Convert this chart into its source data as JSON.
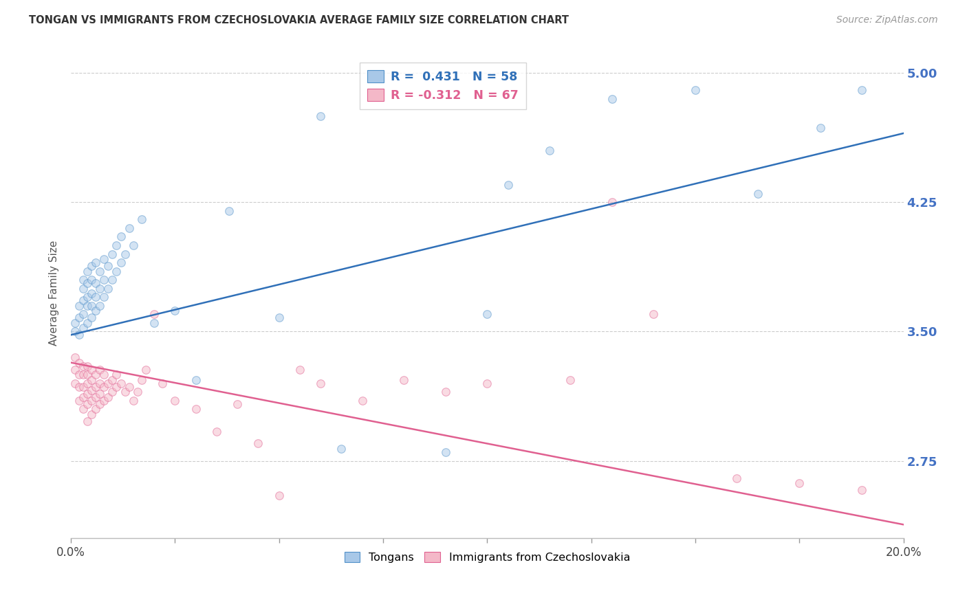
{
  "title": "TONGAN VS IMMIGRANTS FROM CZECHOSLOVAKIA AVERAGE FAMILY SIZE CORRELATION CHART",
  "source_text": "Source: ZipAtlas.com",
  "ylabel": "Average Family Size",
  "yticks": [
    2.75,
    3.5,
    4.25,
    5.0
  ],
  "ytick_color": "#4472c4",
  "xmin": 0.0,
  "xmax": 0.2,
  "ymin": 2.3,
  "ymax": 5.15,
  "blue_R": 0.431,
  "blue_N": 58,
  "pink_R": -0.312,
  "pink_N": 67,
  "blue_scatter_color": "#a8c8e8",
  "pink_scatter_color": "#f4b8c8",
  "blue_edge_color": "#5090c8",
  "pink_edge_color": "#e06090",
  "blue_line_color": "#3070b8",
  "pink_line_color": "#e06090",
  "legend_box_blue": "#a8c8e8",
  "legend_box_pink": "#f4b8c8",
  "background_color": "#ffffff",
  "grid_color": "#cccccc",
  "title_color": "#333333",
  "blue_scatter_x": [
    0.001,
    0.001,
    0.002,
    0.002,
    0.002,
    0.003,
    0.003,
    0.003,
    0.003,
    0.003,
    0.004,
    0.004,
    0.004,
    0.004,
    0.004,
    0.005,
    0.005,
    0.005,
    0.005,
    0.005,
    0.006,
    0.006,
    0.006,
    0.006,
    0.007,
    0.007,
    0.007,
    0.008,
    0.008,
    0.008,
    0.009,
    0.009,
    0.01,
    0.01,
    0.011,
    0.011,
    0.012,
    0.012,
    0.013,
    0.014,
    0.015,
    0.017,
    0.02,
    0.025,
    0.03,
    0.038,
    0.05,
    0.06,
    0.065,
    0.09,
    0.1,
    0.105,
    0.115,
    0.13,
    0.15,
    0.165,
    0.18,
    0.19
  ],
  "blue_scatter_y": [
    3.5,
    3.55,
    3.48,
    3.58,
    3.65,
    3.52,
    3.6,
    3.68,
    3.75,
    3.8,
    3.55,
    3.65,
    3.7,
    3.78,
    3.85,
    3.58,
    3.65,
    3.72,
    3.8,
    3.88,
    3.62,
    3.7,
    3.78,
    3.9,
    3.65,
    3.75,
    3.85,
    3.7,
    3.8,
    3.92,
    3.75,
    3.88,
    3.8,
    3.95,
    3.85,
    4.0,
    3.9,
    4.05,
    3.95,
    4.1,
    4.0,
    4.15,
    3.55,
    3.62,
    3.22,
    4.2,
    3.58,
    4.75,
    2.82,
    2.8,
    3.6,
    4.35,
    4.55,
    4.85,
    4.9,
    4.3,
    4.68,
    4.9
  ],
  "pink_scatter_x": [
    0.001,
    0.001,
    0.001,
    0.002,
    0.002,
    0.002,
    0.002,
    0.003,
    0.003,
    0.003,
    0.003,
    0.003,
    0.004,
    0.004,
    0.004,
    0.004,
    0.004,
    0.004,
    0.005,
    0.005,
    0.005,
    0.005,
    0.005,
    0.006,
    0.006,
    0.006,
    0.006,
    0.007,
    0.007,
    0.007,
    0.007,
    0.008,
    0.008,
    0.008,
    0.009,
    0.009,
    0.01,
    0.01,
    0.011,
    0.011,
    0.012,
    0.013,
    0.014,
    0.015,
    0.016,
    0.017,
    0.018,
    0.02,
    0.022,
    0.025,
    0.03,
    0.035,
    0.04,
    0.045,
    0.05,
    0.055,
    0.06,
    0.07,
    0.08,
    0.09,
    0.1,
    0.12,
    0.13,
    0.14,
    0.16,
    0.175,
    0.19
  ],
  "pink_scatter_y": [
    3.2,
    3.28,
    3.35,
    3.1,
    3.18,
    3.25,
    3.32,
    3.05,
    3.12,
    3.18,
    3.25,
    3.3,
    2.98,
    3.08,
    3.14,
    3.2,
    3.25,
    3.3,
    3.02,
    3.1,
    3.16,
    3.22,
    3.28,
    3.05,
    3.12,
    3.18,
    3.25,
    3.08,
    3.14,
    3.2,
    3.28,
    3.1,
    3.18,
    3.25,
    3.12,
    3.2,
    3.15,
    3.22,
    3.18,
    3.25,
    3.2,
    3.15,
    3.18,
    3.1,
    3.15,
    3.22,
    3.28,
    3.6,
    3.2,
    3.1,
    3.05,
    2.92,
    3.08,
    2.85,
    2.55,
    3.28,
    3.2,
    3.1,
    3.22,
    3.15,
    3.2,
    3.22,
    4.25,
    3.6,
    2.65,
    2.62,
    2.58
  ],
  "blue_trendline_x": [
    0.0,
    0.2
  ],
  "blue_trendline_y": [
    3.48,
    4.65
  ],
  "pink_trendline_x": [
    0.0,
    0.2
  ],
  "pink_trendline_y": [
    3.32,
    2.38
  ],
  "xtick_positions": [
    0.0,
    0.025,
    0.05,
    0.075,
    0.1,
    0.125,
    0.15,
    0.175,
    0.2
  ],
  "xtick_labels": [
    "0.0%",
    "",
    "",
    "",
    "",
    "",
    "",
    "",
    "20.0%"
  ],
  "marker_size": 70,
  "marker_alpha": 0.5,
  "line_width": 1.8
}
